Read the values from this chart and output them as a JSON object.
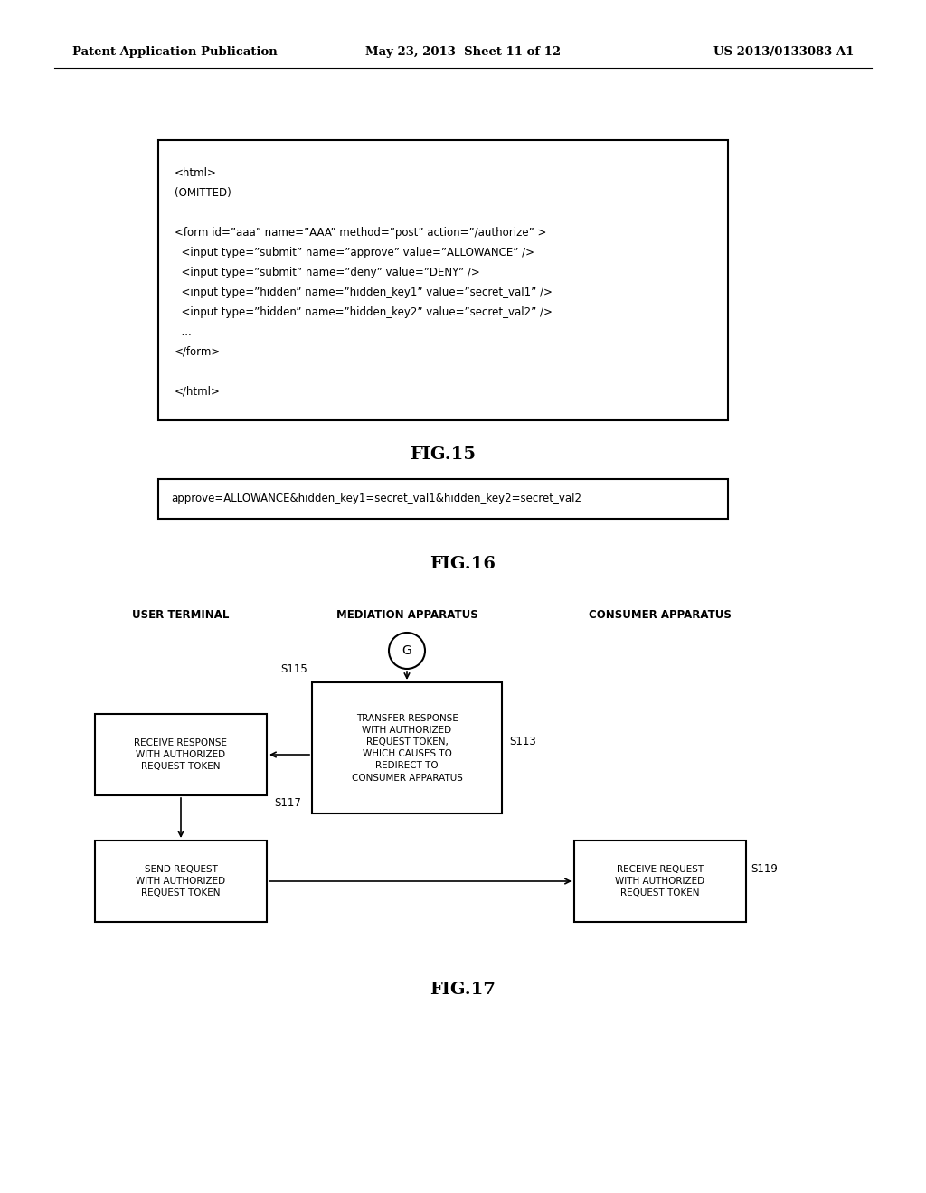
{
  "bg_color": "#ffffff",
  "header_left": "Patent Application Publication",
  "header_mid": "May 23, 2013  Sheet 11 of 12",
  "header_right": "US 2013/0133083 A1",
  "fig15_title": "FIG.15",
  "fig16_title": "FIG.16",
  "fig17_title": "FIG.17",
  "fig15_lines": [
    "<html>",
    "(OMITTED)",
    "",
    "<form id=”aaa” name=”AAA” method=”post” action=”/authorize” >",
    "  <input type=”submit” name=”approve” value=”ALLOWANCE” />",
    "  <input type=”submit” name=”deny” value=”DENY” />",
    "  <input type=”hidden” name=”hidden_key1” value=”secret_val1” />",
    "  <input type=”hidden” name=”hidden_key2” value=”secret_val2” />",
    "  ...",
    "</form>",
    "",
    "</html>"
  ],
  "fig16_text": "approve=ALLOWANCE&hidden_key1=secret_val1&hidden_key2=secret_val2",
  "col_user_label": "USER TERMINAL",
  "col_med_label": "MEDIATION APPARATUS",
  "col_con_label": "CONSUMER APPARATUS",
  "s113_label": "S113",
  "s115_label": "S115",
  "s117_label": "S117",
  "s119_label": "S119",
  "box_transfer_text": "TRANSFER RESPONSE\nWITH AUTHORIZED\nREQUEST TOKEN,\nWHICH CAUSES TO\nREDIRECT TO\nCONSUMER APPARATUS",
  "box_receive_left_text": "RECEIVE RESPONSE\nWITH AUTHORIZED\nREQUEST TOKEN",
  "box_send_text": "SEND REQUEST\nWITH AUTHORIZED\nREQUEST TOKEN",
  "box_receive_right_text": "RECEIVE REQUEST\nWITH AUTHORIZED\nREQUEST TOKEN"
}
